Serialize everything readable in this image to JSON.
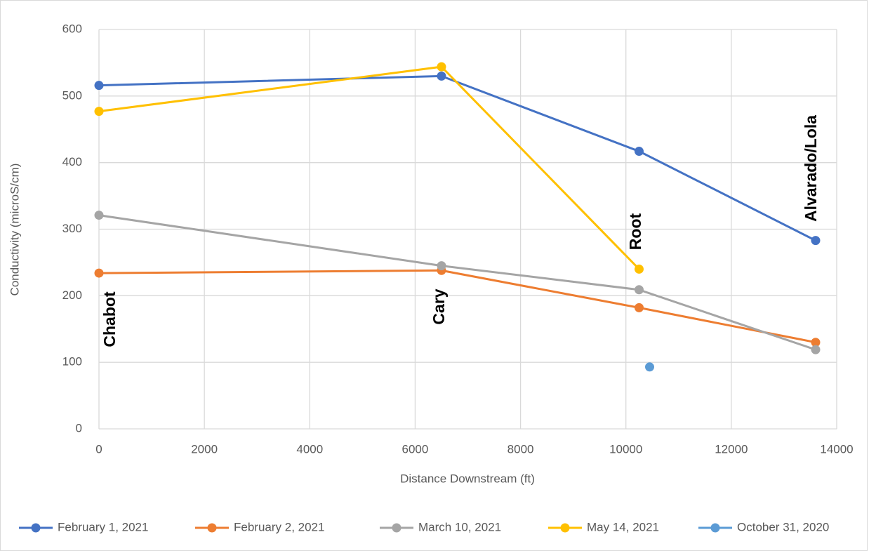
{
  "chart_data": {
    "type": "line",
    "x_label": "Distance Downstream (ft)",
    "y_label": "Conductivity (microS/cm)",
    "xlim": [
      0,
      14000
    ],
    "xticks": [
      0,
      2000,
      4000,
      6000,
      8000,
      10000,
      12000,
      14000
    ],
    "ylim": [
      0,
      600
    ],
    "yticks": [
      0,
      100,
      200,
      300,
      400,
      500,
      600
    ],
    "grid": true,
    "legend": "bottom",
    "annotations": [
      "Chabot",
      "Cary",
      "Root",
      "Alvarado/Lola"
    ],
    "series": [
      {
        "name": "February 1, 2021",
        "color": "#4472c4",
        "x": [
          0,
          6500,
          10250,
          13600
        ],
        "values": [
          516,
          530,
          417,
          283
        ]
      },
      {
        "name": "February 2, 2021",
        "color": "#ed7d31",
        "x": [
          0,
          6500,
          10250,
          13600
        ],
        "values": [
          234,
          238,
          182,
          130
        ]
      },
      {
        "name": "March 10, 2021",
        "color": "#a5a5a5",
        "x": [
          0,
          6500,
          10250,
          13600
        ],
        "values": [
          321,
          245,
          209,
          119
        ]
      },
      {
        "name": "May 14, 2021",
        "color": "#ffc000",
        "x": [
          0,
          6500,
          10250
        ],
        "values": [
          477,
          544,
          240
        ]
      },
      {
        "name": "October 31, 2020",
        "color": "#5b9bd5",
        "x": [
          10450
        ],
        "values": [
          93
        ]
      }
    ]
  }
}
